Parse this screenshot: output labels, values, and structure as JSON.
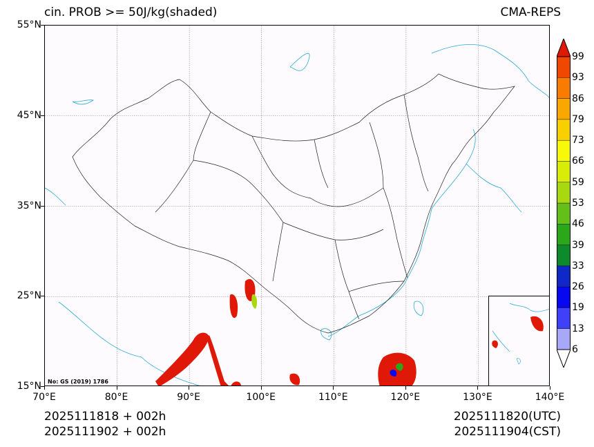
{
  "title": {
    "left": "cin. PROB >= 50J/kg(shaded)",
    "right": "CMA-REPS"
  },
  "axes": {
    "lat_labels": [
      "55°N",
      "45°N",
      "35°N",
      "25°N",
      "15°N"
    ],
    "lat_values": [
      55,
      45,
      35,
      25,
      15
    ],
    "lon_labels": [
      "70°E",
      "80°E",
      "90°E",
      "100°E",
      "110°E",
      "120°E",
      "130°E",
      "140°E"
    ],
    "lon_values": [
      70,
      80,
      90,
      100,
      110,
      120,
      130,
      140
    ],
    "lat_range": [
      15,
      55
    ],
    "lon_range": [
      70,
      140
    ]
  },
  "footer": {
    "init_utc": "2025111818  +  002h",
    "init_cst": "2025111902  +  002h",
    "valid_utc": "2025111820(UTC)",
    "valid_cst": "2025111904(CST)"
  },
  "map_note": "No: GS (2019) 1786",
  "colorbar": {
    "levels": [
      "6",
      "13",
      "19",
      "26",
      "33",
      "39",
      "46",
      "53",
      "59",
      "66",
      "73",
      "79",
      "86",
      "93",
      "99"
    ],
    "colors": [
      "#a8a8f8",
      "#4040f8",
      "#0808f0",
      "#1028c8",
      "#0c8a2c",
      "#2aa81a",
      "#64c018",
      "#a8d810",
      "#d8ec08",
      "#f8f80a",
      "#f8d000",
      "#f8a800",
      "#f87c00",
      "#f04800",
      "#e01808"
    ]
  },
  "colors": {
    "border": "#222222",
    "coast": "#2aa8d8",
    "grid": "#888888",
    "background": "#fdfbfd"
  }
}
